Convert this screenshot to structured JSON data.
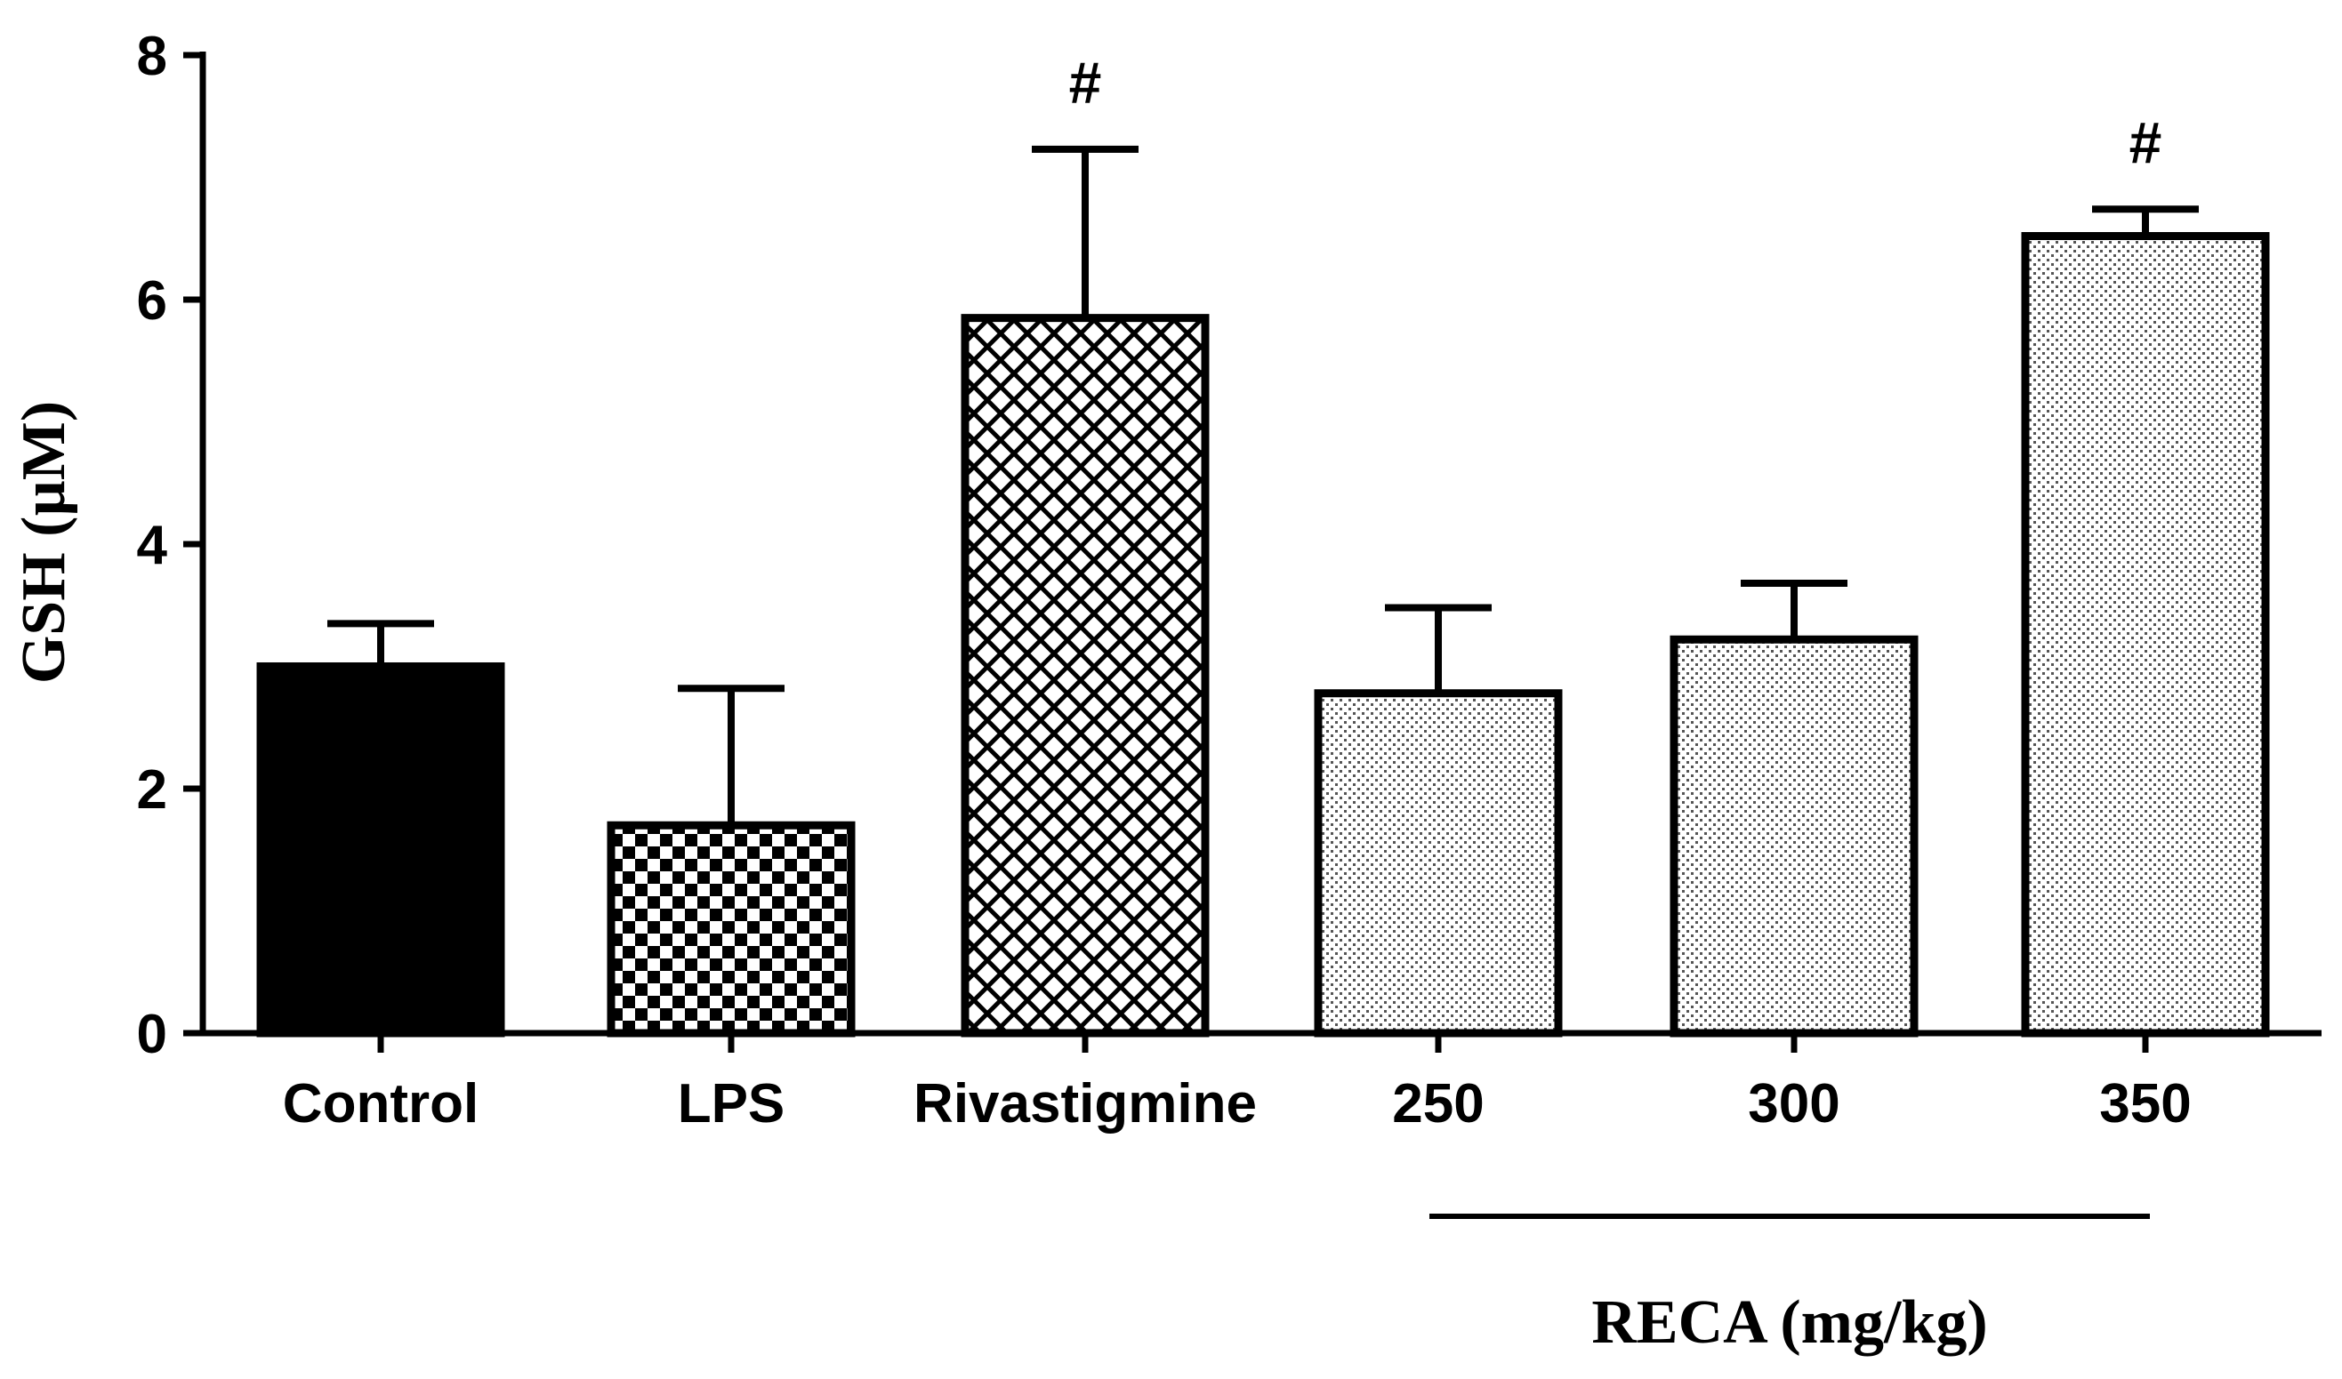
{
  "chart_data": {
    "type": "bar",
    "title": "",
    "xlabel": "",
    "ylabel": "GSH (µM)",
    "ylim": [
      0,
      8
    ],
    "yticks": [
      0,
      2,
      4,
      6,
      8
    ],
    "grid": false,
    "categories": [
      "Control",
      "LPS",
      "Rivastigmine",
      "250",
      "300",
      "350"
    ],
    "values": [
      3.0,
      1.7,
      5.85,
      2.78,
      3.22,
      6.52
    ],
    "errors": [
      0.35,
      1.12,
      1.38,
      0.7,
      0.46,
      0.22
    ],
    "patterns": [
      "solid-black",
      "checkerboard",
      "crosshatch",
      "dots",
      "dots",
      "dots"
    ],
    "significance": [
      "",
      "",
      "#",
      "",
      "",
      "#"
    ],
    "group_bracket": {
      "label": "RECA (mg/kg)",
      "categories": [
        "250",
        "300",
        "350"
      ]
    }
  },
  "colors": {
    "ink": "#000000",
    "background": "#ffffff"
  }
}
